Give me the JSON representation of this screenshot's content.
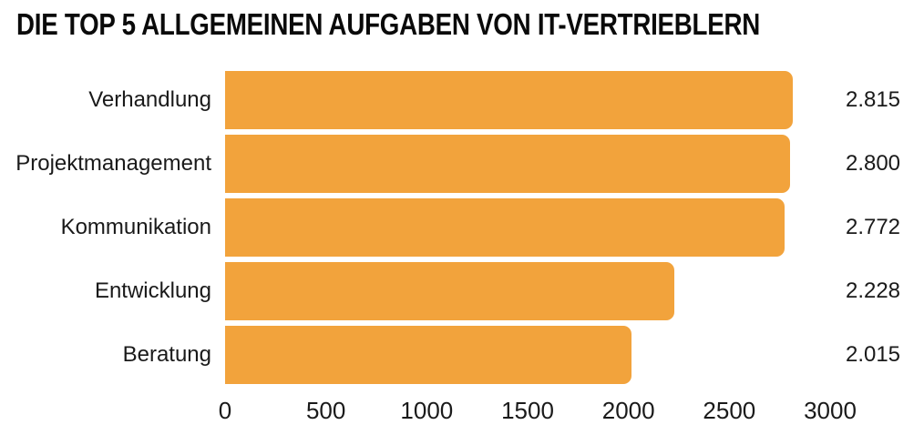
{
  "title": "DIE TOP 5 ALLGEMEINEN AUFGABEN VON IT-VERTRIEBLERN",
  "colors": {
    "bar": "#F2A33C",
    "background": "#FFFFFF",
    "title_text": "#0A0A0A",
    "label_text": "#1A1A1A"
  },
  "chart_data": {
    "type": "bar",
    "orientation": "horizontal",
    "title": "DIE TOP 5 ALLGEMEINEN AUFGABEN VON IT-VERTRIEBLERN",
    "categories": [
      "Verhandlung",
      "Projektmanagement",
      "Kommunikation",
      "Entwicklung",
      "Beratung"
    ],
    "values": [
      2815,
      2800,
      2772,
      2228,
      2015
    ],
    "value_labels": [
      "2.815",
      "2.800",
      "2.772",
      "2.228",
      "2.015"
    ],
    "xlabel": "",
    "ylabel": "",
    "xlim": [
      0,
      3000
    ],
    "x_ticks": [
      0,
      500,
      1000,
      1500,
      2000,
      2500,
      3000
    ],
    "x_tick_labels": [
      "0",
      "500",
      "1000",
      "1500",
      "2000",
      "2500",
      "3000"
    ],
    "grid": false,
    "legend": false,
    "bar_color": "#F2A33C",
    "sorted": "descending"
  }
}
